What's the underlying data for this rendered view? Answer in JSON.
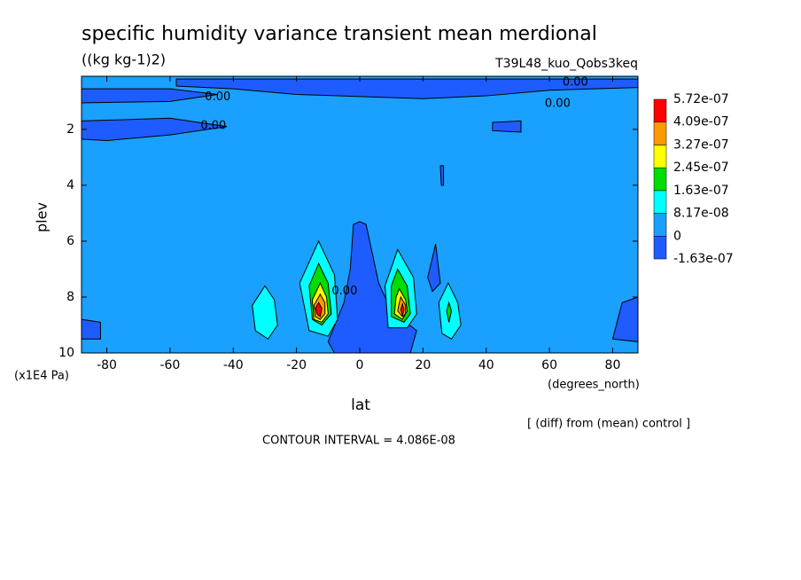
{
  "chart_data": {
    "type": "contour",
    "title": "specific humidity variance transient mean merdional",
    "units": "((kg kg-1)2)",
    "dataset": "T39L48_kuo_Qobs3keq",
    "xlabel": "lat",
    "ylabel": "plev",
    "yunits": "(x1E4 Pa)",
    "xunits": "(degrees_north)",
    "note": "[ (diff) from (mean) control ]",
    "contour_interval": "CONTOUR INTERVAL = 4.086E-08",
    "xlim": [
      -88,
      88
    ],
    "ylim": [
      10,
      0.1
    ],
    "xticks": [
      -80,
      -60,
      -40,
      -20,
      0,
      20,
      40,
      60,
      80
    ],
    "yticks": [
      2,
      4,
      6,
      8,
      10
    ],
    "levels": [
      {
        "value": -1.63e-07,
        "label": "-1.63e-07"
      },
      0,
      {
        "value": 8.17e-08,
        "label": "8.17e-08"
      },
      {
        "value": 1.63e-07,
        "label": "1.63e-07"
      },
      {
        "value": 2.45e-07,
        "label": "2.45e-07"
      },
      {
        "value": 3.27e-07,
        "label": "3.27e-07"
      },
      {
        "value": 4.09e-07,
        "label": "4.09e-07"
      },
      {
        "value": 5.72e-07,
        "label": "5.72e-07"
      }
    ],
    "colors": [
      "#1f5cff",
      "#1aa0ff",
      "#00ffff",
      "#00dd00",
      "#ffff00",
      "#ff9900",
      "#ff0000"
    ],
    "background_level": 0,
    "regions": [
      {
        "level": -1.63e-07,
        "lat": [
          -58,
          88,
          88,
          60,
          40,
          20,
          -20,
          -40,
          -58
        ],
        "plev": [
          0.2,
          0.2,
          0.5,
          0.6,
          0.8,
          0.9,
          0.75,
          0.55,
          0.45
        ]
      },
      {
        "level": -1.63e-07,
        "lat": [
          -88,
          -60,
          -45,
          -60,
          -88
        ],
        "plev": [
          0.55,
          0.55,
          0.75,
          1.0,
          1.05
        ]
      },
      {
        "level": -1.63e-07,
        "lat": [
          -88,
          -60,
          -42,
          -60,
          -80,
          -88
        ],
        "plev": [
          1.7,
          1.6,
          1.9,
          2.2,
          2.4,
          2.35
        ]
      },
      {
        "level": -1.63e-07,
        "lat": [
          42,
          51,
          51,
          42
        ],
        "plev": [
          1.75,
          1.7,
          2.1,
          2.05
        ]
      },
      {
        "level": -1.63e-07,
        "lat": [
          25.5,
          26.5,
          26.5,
          25.8
        ],
        "plev": [
          3.3,
          3.3,
          4.0,
          4.0
        ]
      },
      {
        "level": -1.63e-07,
        "lat": [
          -2,
          0,
          2,
          6,
          10,
          18,
          16,
          -8,
          -10,
          -5,
          -3
        ],
        "plev": [
          5.4,
          5.3,
          5.4,
          7.5,
          8.5,
          9.2,
          10,
          10,
          9.6,
          8.2,
          7
        ]
      },
      {
        "level": -1.63e-07,
        "lat": [
          24,
          25.5,
          23,
          21.5
        ],
        "plev": [
          6.1,
          7.5,
          7.8,
          7.3
        ]
      },
      {
        "level": -1.63e-07,
        "lat": [
          -88,
          -82,
          -82,
          -88
        ],
        "plev": [
          8.8,
          8.9,
          9.5,
          9.5
        ]
      },
      {
        "level": -1.63e-07,
        "lat": [
          88,
          83,
          80,
          88
        ],
        "plev": [
          8.0,
          8.2,
          9.5,
          9.6
        ]
      },
      {
        "level": 8.17e-08,
        "lat": [
          -13,
          -8,
          -7,
          -10,
          -16,
          -19
        ],
        "plev": [
          6.0,
          7.2,
          8.8,
          9.4,
          9.2,
          7.5
        ]
      },
      {
        "level": 1.63e-07,
        "lat": [
          -13,
          -10,
          -9,
          -12,
          -15,
          -16
        ],
        "plev": [
          6.8,
          7.5,
          8.6,
          9.0,
          8.8,
          7.6
        ]
      },
      {
        "level": 2.45e-07,
        "lat": [
          -12.5,
          -10.5,
          -10,
          -12,
          -14.5,
          -15
        ],
        "plev": [
          7.5,
          8.0,
          8.6,
          8.9,
          8.8,
          8.1
        ]
      },
      {
        "level": 3.27e-07,
        "lat": [
          -12.5,
          -11,
          -11,
          -12.5,
          -14,
          -14.5
        ],
        "plev": [
          7.9,
          8.2,
          8.6,
          8.8,
          8.7,
          8.3
        ]
      },
      {
        "level": 4.09e-07,
        "lat": [
          -13,
          -12,
          -12.5,
          -13.5,
          -14
        ],
        "plev": [
          8.2,
          8.4,
          8.7,
          8.6,
          8.4
        ]
      },
      {
        "level": 8.17e-08,
        "lat": [
          12,
          17,
          18,
          15,
          9,
          8
        ],
        "plev": [
          6.3,
          7.3,
          8.6,
          9.1,
          9.1,
          7.6
        ]
      },
      {
        "level": 1.63e-07,
        "lat": [
          12,
          15,
          16,
          14,
          10,
          10
        ],
        "plev": [
          7.0,
          7.6,
          8.6,
          8.9,
          8.7,
          7.6
        ]
      },
      {
        "level": 2.45e-07,
        "lat": [
          12.5,
          14.5,
          15,
          13.5,
          11,
          11.5
        ],
        "plev": [
          7.7,
          8.1,
          8.5,
          8.8,
          8.6,
          8.0
        ]
      },
      {
        "level": 3.27e-07,
        "lat": [
          13,
          14.5,
          14.5,
          13.5,
          12,
          12.5
        ],
        "plev": [
          8.0,
          8.3,
          8.6,
          8.7,
          8.5,
          8.2
        ]
      },
      {
        "level": 4.09e-07,
        "lat": [
          13.5,
          14,
          13.5,
          13
        ],
        "plev": [
          8.25,
          8.45,
          8.65,
          8.45
        ]
      },
      {
        "level": 8.17e-08,
        "lat": [
          -30,
          -27,
          -26,
          -29,
          -33,
          -34
        ],
        "plev": [
          7.6,
          8.1,
          9.0,
          9.5,
          9.2,
          8.3
        ]
      },
      {
        "level": 8.17e-08,
        "lat": [
          28,
          31,
          32,
          29,
          26,
          25
        ],
        "plev": [
          7.5,
          8.2,
          9.0,
          9.5,
          9.3,
          8.2
        ]
      },
      {
        "level": 1.63e-07,
        "lat": [
          28.2,
          29,
          28.2,
          27.5
        ],
        "plev": [
          8.2,
          8.5,
          8.9,
          8.5
        ]
      }
    ],
    "contour_labels": [
      {
        "text": "0.00",
        "lat": 68.2,
        "plev": 0.33
      },
      {
        "text": "0.00",
        "lat": 62.6,
        "plev": 1.09
      },
      {
        "text": "0.00",
        "lat": -44.9,
        "plev": 0.84
      },
      {
        "text": "0.00",
        "lat": -46.3,
        "plev": 1.88
      },
      {
        "text": "0.00",
        "lat": -4.8,
        "plev": 7.8
      }
    ]
  }
}
